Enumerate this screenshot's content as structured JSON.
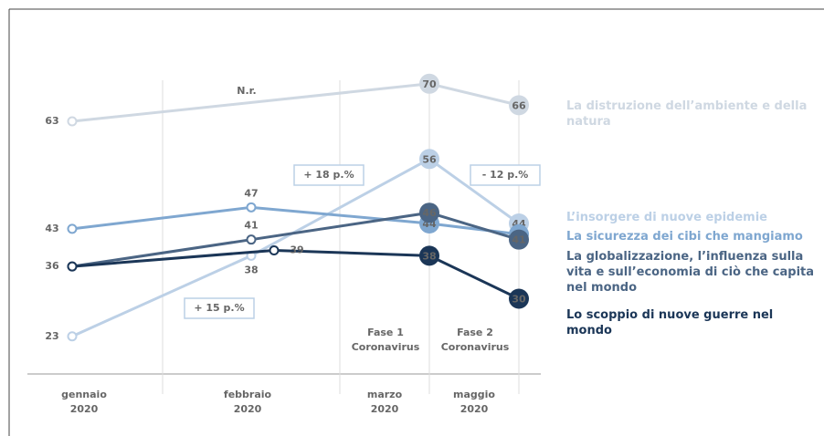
{
  "chart_data": {
    "type": "line",
    "categories": [
      "gennaio 2020",
      "febbraio 2020",
      "marzo 2020",
      "maggio 2020"
    ],
    "ylim": [
      16,
      72
    ],
    "series": [
      {
        "name": "La distruzione dell’ambiente e della natura",
        "color": "#cfd8e2",
        "values": [
          63,
          null,
          70,
          66
        ]
      },
      {
        "name": "L’insorgere di nuove epidemie",
        "color": "#bcd0e6",
        "values": [
          23,
          38,
          56,
          44
        ]
      },
      {
        "name": "La sicurezza dei cibi che mangiamo",
        "color": "#7fa7d0",
        "values": [
          43,
          47,
          44,
          42
        ]
      },
      {
        "name": "La globalizzazione, l’influenza sulla vita e sull’economia di ciò che capita nel mondo",
        "color": "#4b6584",
        "values": [
          36,
          41,
          46,
          41
        ]
      },
      {
        "name": "Lo scoppio di nuove guerre nel mondo",
        "color": "#1b3657",
        "values": [
          36,
          39,
          38,
          30
        ]
      }
    ],
    "annotations": [
      "N.r.",
      "+ 18 p.%",
      "- 12 p.%",
      "+ 15 p.%",
      "Fase 1 Coronavirus",
      "Fase 2 Coronavirus"
    ]
  }
}
